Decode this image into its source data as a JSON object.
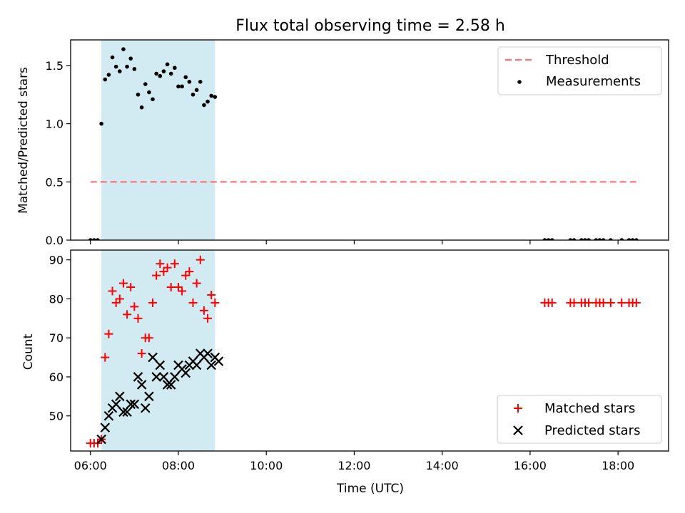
{
  "figure": {
    "title": "Flux total observing time = 2.58 h"
  },
  "colors": {
    "threshold": "#ff7070",
    "measurements": "#000000",
    "matched": "#ff0000",
    "predicted": "#000000",
    "highlight": "#add8e6"
  },
  "chart_data": [
    {
      "type": "scatter",
      "panel": "top",
      "xlabel": "",
      "ylabel": "Matched/Predicted stars",
      "ylim": [
        0,
        1.72
      ],
      "yticks": [
        0.0,
        0.5,
        1.0,
        1.5
      ],
      "ytick_labels": [
        "0.0",
        "0.5",
        "1.0",
        "1.5"
      ],
      "xlim": [
        "05:33",
        "19:09"
      ],
      "highlight_span": [
        "06:15",
        "08:50"
      ],
      "legend_position": "top-right",
      "threshold": {
        "name": "Threshold",
        "y": 0.5,
        "x_start": "06:00",
        "x_end": "18:30",
        "style": "dashed"
      },
      "series": [
        {
          "name": "Measurements",
          "marker": "dot",
          "points": [
            [
              "06:00",
              0.0
            ],
            [
              "06:05",
              0.0
            ],
            [
              "06:10",
              0.0
            ],
            [
              "06:15",
              1.0
            ],
            [
              "06:20",
              1.38
            ],
            [
              "06:25",
              1.42
            ],
            [
              "06:30",
              1.57
            ],
            [
              "06:35",
              1.49
            ],
            [
              "06:40",
              1.45
            ],
            [
              "06:45",
              1.64
            ],
            [
              "06:50",
              1.49
            ],
            [
              "06:55",
              1.56
            ],
            [
              "07:00",
              1.47
            ],
            [
              "07:05",
              1.25
            ],
            [
              "07:10",
              1.14
            ],
            [
              "07:15",
              1.34
            ],
            [
              "07:20",
              1.27
            ],
            [
              "07:25",
              1.21
            ],
            [
              "07:30",
              1.43
            ],
            [
              "07:35",
              1.41
            ],
            [
              "07:40",
              1.45
            ],
            [
              "07:45",
              1.51
            ],
            [
              "07:50",
              1.43
            ],
            [
              "07:55",
              1.48
            ],
            [
              "08:00",
              1.32
            ],
            [
              "08:05",
              1.32
            ],
            [
              "08:10",
              1.4
            ],
            [
              "08:15",
              1.36
            ],
            [
              "08:20",
              1.25
            ],
            [
              "08:25",
              1.29
            ],
            [
              "08:30",
              1.36
            ],
            [
              "08:35",
              1.16
            ],
            [
              "08:40",
              1.19
            ],
            [
              "08:45",
              1.24
            ],
            [
              "08:50",
              1.23
            ],
            [
              "16:20",
              0.0
            ],
            [
              "16:25",
              0.0
            ],
            [
              "16:30",
              0.0
            ],
            [
              "16:55",
              0.0
            ],
            [
              "17:00",
              0.0
            ],
            [
              "17:10",
              0.0
            ],
            [
              "17:15",
              0.0
            ],
            [
              "17:20",
              0.0
            ],
            [
              "17:30",
              0.0
            ],
            [
              "17:35",
              0.0
            ],
            [
              "17:40",
              0.0
            ],
            [
              "17:50",
              0.0
            ],
            [
              "18:05",
              0.0
            ],
            [
              "18:15",
              0.0
            ],
            [
              "18:20",
              0.0
            ],
            [
              "18:25",
              0.0
            ]
          ]
        }
      ]
    },
    {
      "type": "scatter",
      "panel": "bottom",
      "xlabel": "Time (UTC)",
      "ylabel": "Count",
      "ylim": [
        41,
        92.5
      ],
      "yticks": [
        50,
        60,
        70,
        80,
        90
      ],
      "xlim": [
        "05:33",
        "19:09"
      ],
      "xticks": [
        "06:00",
        "08:00",
        "10:00",
        "12:00",
        "14:00",
        "16:00",
        "18:00"
      ],
      "highlight_span": [
        "06:15",
        "08:50"
      ],
      "legend_position": "bottom-right",
      "series": [
        {
          "name": "Matched stars",
          "marker": "plus",
          "points": [
            [
              "06:00",
              43
            ],
            [
              "06:05",
              43
            ],
            [
              "06:10",
              43
            ],
            [
              "06:15",
              44
            ],
            [
              "06:20",
              65
            ],
            [
              "06:25",
              71
            ],
            [
              "06:30",
              82
            ],
            [
              "06:35",
              79
            ],
            [
              "06:40",
              80
            ],
            [
              "06:45",
              84
            ],
            [
              "06:50",
              76
            ],
            [
              "06:55",
              83
            ],
            [
              "07:00",
              78
            ],
            [
              "07:05",
              75
            ],
            [
              "07:10",
              66
            ],
            [
              "07:15",
              70
            ],
            [
              "07:20",
              70
            ],
            [
              "07:25",
              79
            ],
            [
              "07:30",
              86
            ],
            [
              "07:35",
              89
            ],
            [
              "07:40",
              87
            ],
            [
              "07:45",
              88
            ],
            [
              "07:50",
              83
            ],
            [
              "07:55",
              89
            ],
            [
              "08:00",
              83
            ],
            [
              "08:05",
              82
            ],
            [
              "08:10",
              86
            ],
            [
              "08:15",
              87
            ],
            [
              "08:20",
              79
            ],
            [
              "08:25",
              84
            ],
            [
              "08:30",
              90
            ],
            [
              "08:35",
              77
            ],
            [
              "08:40",
              75
            ],
            [
              "08:45",
              81
            ],
            [
              "08:50",
              79
            ],
            [
              "16:20",
              79
            ],
            [
              "16:25",
              79
            ],
            [
              "16:30",
              79
            ],
            [
              "16:55",
              79
            ],
            [
              "17:00",
              79
            ],
            [
              "17:10",
              79
            ],
            [
              "17:15",
              79
            ],
            [
              "17:20",
              79
            ],
            [
              "17:30",
              79
            ],
            [
              "17:35",
              79
            ],
            [
              "17:40",
              79
            ],
            [
              "17:50",
              79
            ],
            [
              "18:05",
              79
            ],
            [
              "18:15",
              79
            ],
            [
              "18:20",
              79
            ],
            [
              "18:25",
              79
            ]
          ]
        },
        {
          "name": "Predicted stars",
          "marker": "x",
          "points": [
            [
              "06:15",
              44
            ],
            [
              "06:20",
              47
            ],
            [
              "06:25",
              50
            ],
            [
              "06:30",
              52
            ],
            [
              "06:35",
              53
            ],
            [
              "06:40",
              55
            ],
            [
              "06:45",
              51
            ],
            [
              "06:50",
              51
            ],
            [
              "06:55",
              53
            ],
            [
              "07:00",
              53
            ],
            [
              "07:05",
              60
            ],
            [
              "07:10",
              58
            ],
            [
              "07:15",
              52
            ],
            [
              "07:20",
              55
            ],
            [
              "07:25",
              65
            ],
            [
              "07:30",
              60
            ],
            [
              "07:35",
              63
            ],
            [
              "07:40",
              60
            ],
            [
              "07:45",
              58
            ],
            [
              "07:50",
              58
            ],
            [
              "07:55",
              60
            ],
            [
              "08:00",
              63
            ],
            [
              "08:05",
              62
            ],
            [
              "08:10",
              61
            ],
            [
              "08:15",
              63
            ],
            [
              "08:20",
              64
            ],
            [
              "08:25",
              63
            ],
            [
              "08:30",
              66
            ],
            [
              "08:35",
              65
            ],
            [
              "08:40",
              66
            ],
            [
              "08:45",
              63
            ],
            [
              "08:50",
              65
            ],
            [
              "08:55",
              64
            ]
          ]
        }
      ]
    }
  ]
}
